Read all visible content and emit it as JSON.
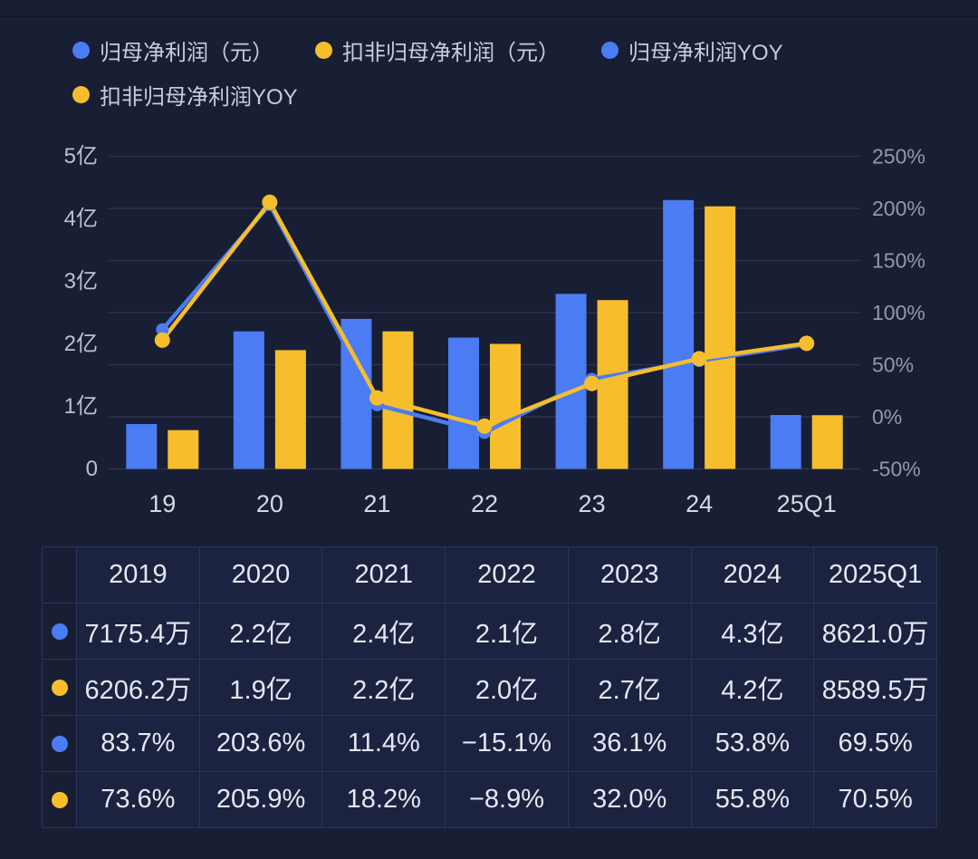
{
  "colors": {
    "background": "#181E34",
    "panel": "#1C2340",
    "border": "#2B3458",
    "blue": "#4B7CF3",
    "yellow": "#F6BE2D"
  },
  "legend": {
    "items": [
      {
        "label": "归母净利润（元）",
        "color": "#4B7CF3"
      },
      {
        "label": "扣非归母净利润（元）",
        "color": "#F6BE2D"
      },
      {
        "label": "归母净利润YOY",
        "color": "#4B7CF3"
      },
      {
        "label": "扣非归母净利润YOY",
        "color": "#F6BE2D"
      }
    ]
  },
  "chart_data": {
    "type": "bar+line-dual-axis",
    "categories": [
      "19",
      "20",
      "21",
      "22",
      "23",
      "24",
      "25Q1"
    ],
    "series": [
      {
        "name": "归母净利润（元）",
        "type": "bar",
        "axis": "left",
        "unit": "亿",
        "color": "#4B7CF3",
        "values": [
          0.71754,
          2.2,
          2.4,
          2.1,
          2.8,
          4.3,
          0.8621
        ]
      },
      {
        "name": "扣非归母净利润（元）",
        "type": "bar",
        "axis": "left",
        "unit": "亿",
        "color": "#F6BE2D",
        "values": [
          0.62062,
          1.9,
          2.2,
          2.0,
          2.7,
          4.2,
          0.85895
        ]
      },
      {
        "name": "归母净利润YOY",
        "type": "line",
        "axis": "right",
        "unit": "%",
        "color": "#4B7CF3",
        "values": [
          83.7,
          203.6,
          11.4,
          -15.1,
          36.1,
          53.8,
          69.5
        ]
      },
      {
        "name": "扣非归母净利润YOY",
        "type": "line",
        "axis": "right",
        "unit": "%",
        "color": "#F6BE2D",
        "values": [
          73.6,
          205.9,
          18.2,
          -8.9,
          32.0,
          55.8,
          70.5
        ]
      }
    ],
    "left_axis": {
      "min": 0,
      "max": 5,
      "ticks": [
        {
          "v": 5,
          "label": "5亿"
        },
        {
          "v": 4,
          "label": "4亿"
        },
        {
          "v": 3,
          "label": "3亿"
        },
        {
          "v": 2,
          "label": "2亿"
        },
        {
          "v": 1,
          "label": "1亿"
        },
        {
          "v": 0,
          "label": "0"
        }
      ]
    },
    "right_axis": {
      "min": -50,
      "max": 250,
      "ticks": [
        {
          "v": 250,
          "label": "250%"
        },
        {
          "v": 200,
          "label": "200%"
        },
        {
          "v": 150,
          "label": "150%"
        },
        {
          "v": 100,
          "label": "100%"
        },
        {
          "v": 50,
          "label": "50%"
        },
        {
          "v": 0,
          "label": "0%"
        },
        {
          "v": -50,
          "label": "-50%"
        }
      ]
    },
    "grid": true,
    "legend_position": "top"
  },
  "table": {
    "columns": [
      "2019",
      "2020",
      "2021",
      "2022",
      "2023",
      "2024",
      "2025Q1"
    ],
    "rows": [
      {
        "dot_color": "#4B7CF3",
        "series": "归母净利润（元）",
        "values": [
          "7175.4万",
          "2.2亿",
          "2.4亿",
          "2.1亿",
          "2.8亿",
          "4.3亿",
          "8621.0万"
        ]
      },
      {
        "dot_color": "#F6BE2D",
        "series": "扣非归母净利润（元）",
        "values": [
          "6206.2万",
          "1.9亿",
          "2.2亿",
          "2.0亿",
          "2.7亿",
          "4.2亿",
          "8589.5万"
        ]
      },
      {
        "dot_color": "#4B7CF3",
        "series": "归母净利润YOY",
        "values": [
          "83.7%",
          "203.6%",
          "11.4%",
          "−15.1%",
          "36.1%",
          "53.8%",
          "69.5%"
        ]
      },
      {
        "dot_color": "#F6BE2D",
        "series": "扣非归母净利润YOY",
        "values": [
          "73.6%",
          "205.9%",
          "18.2%",
          "−8.9%",
          "32.0%",
          "55.8%",
          "70.5%"
        ]
      }
    ]
  }
}
